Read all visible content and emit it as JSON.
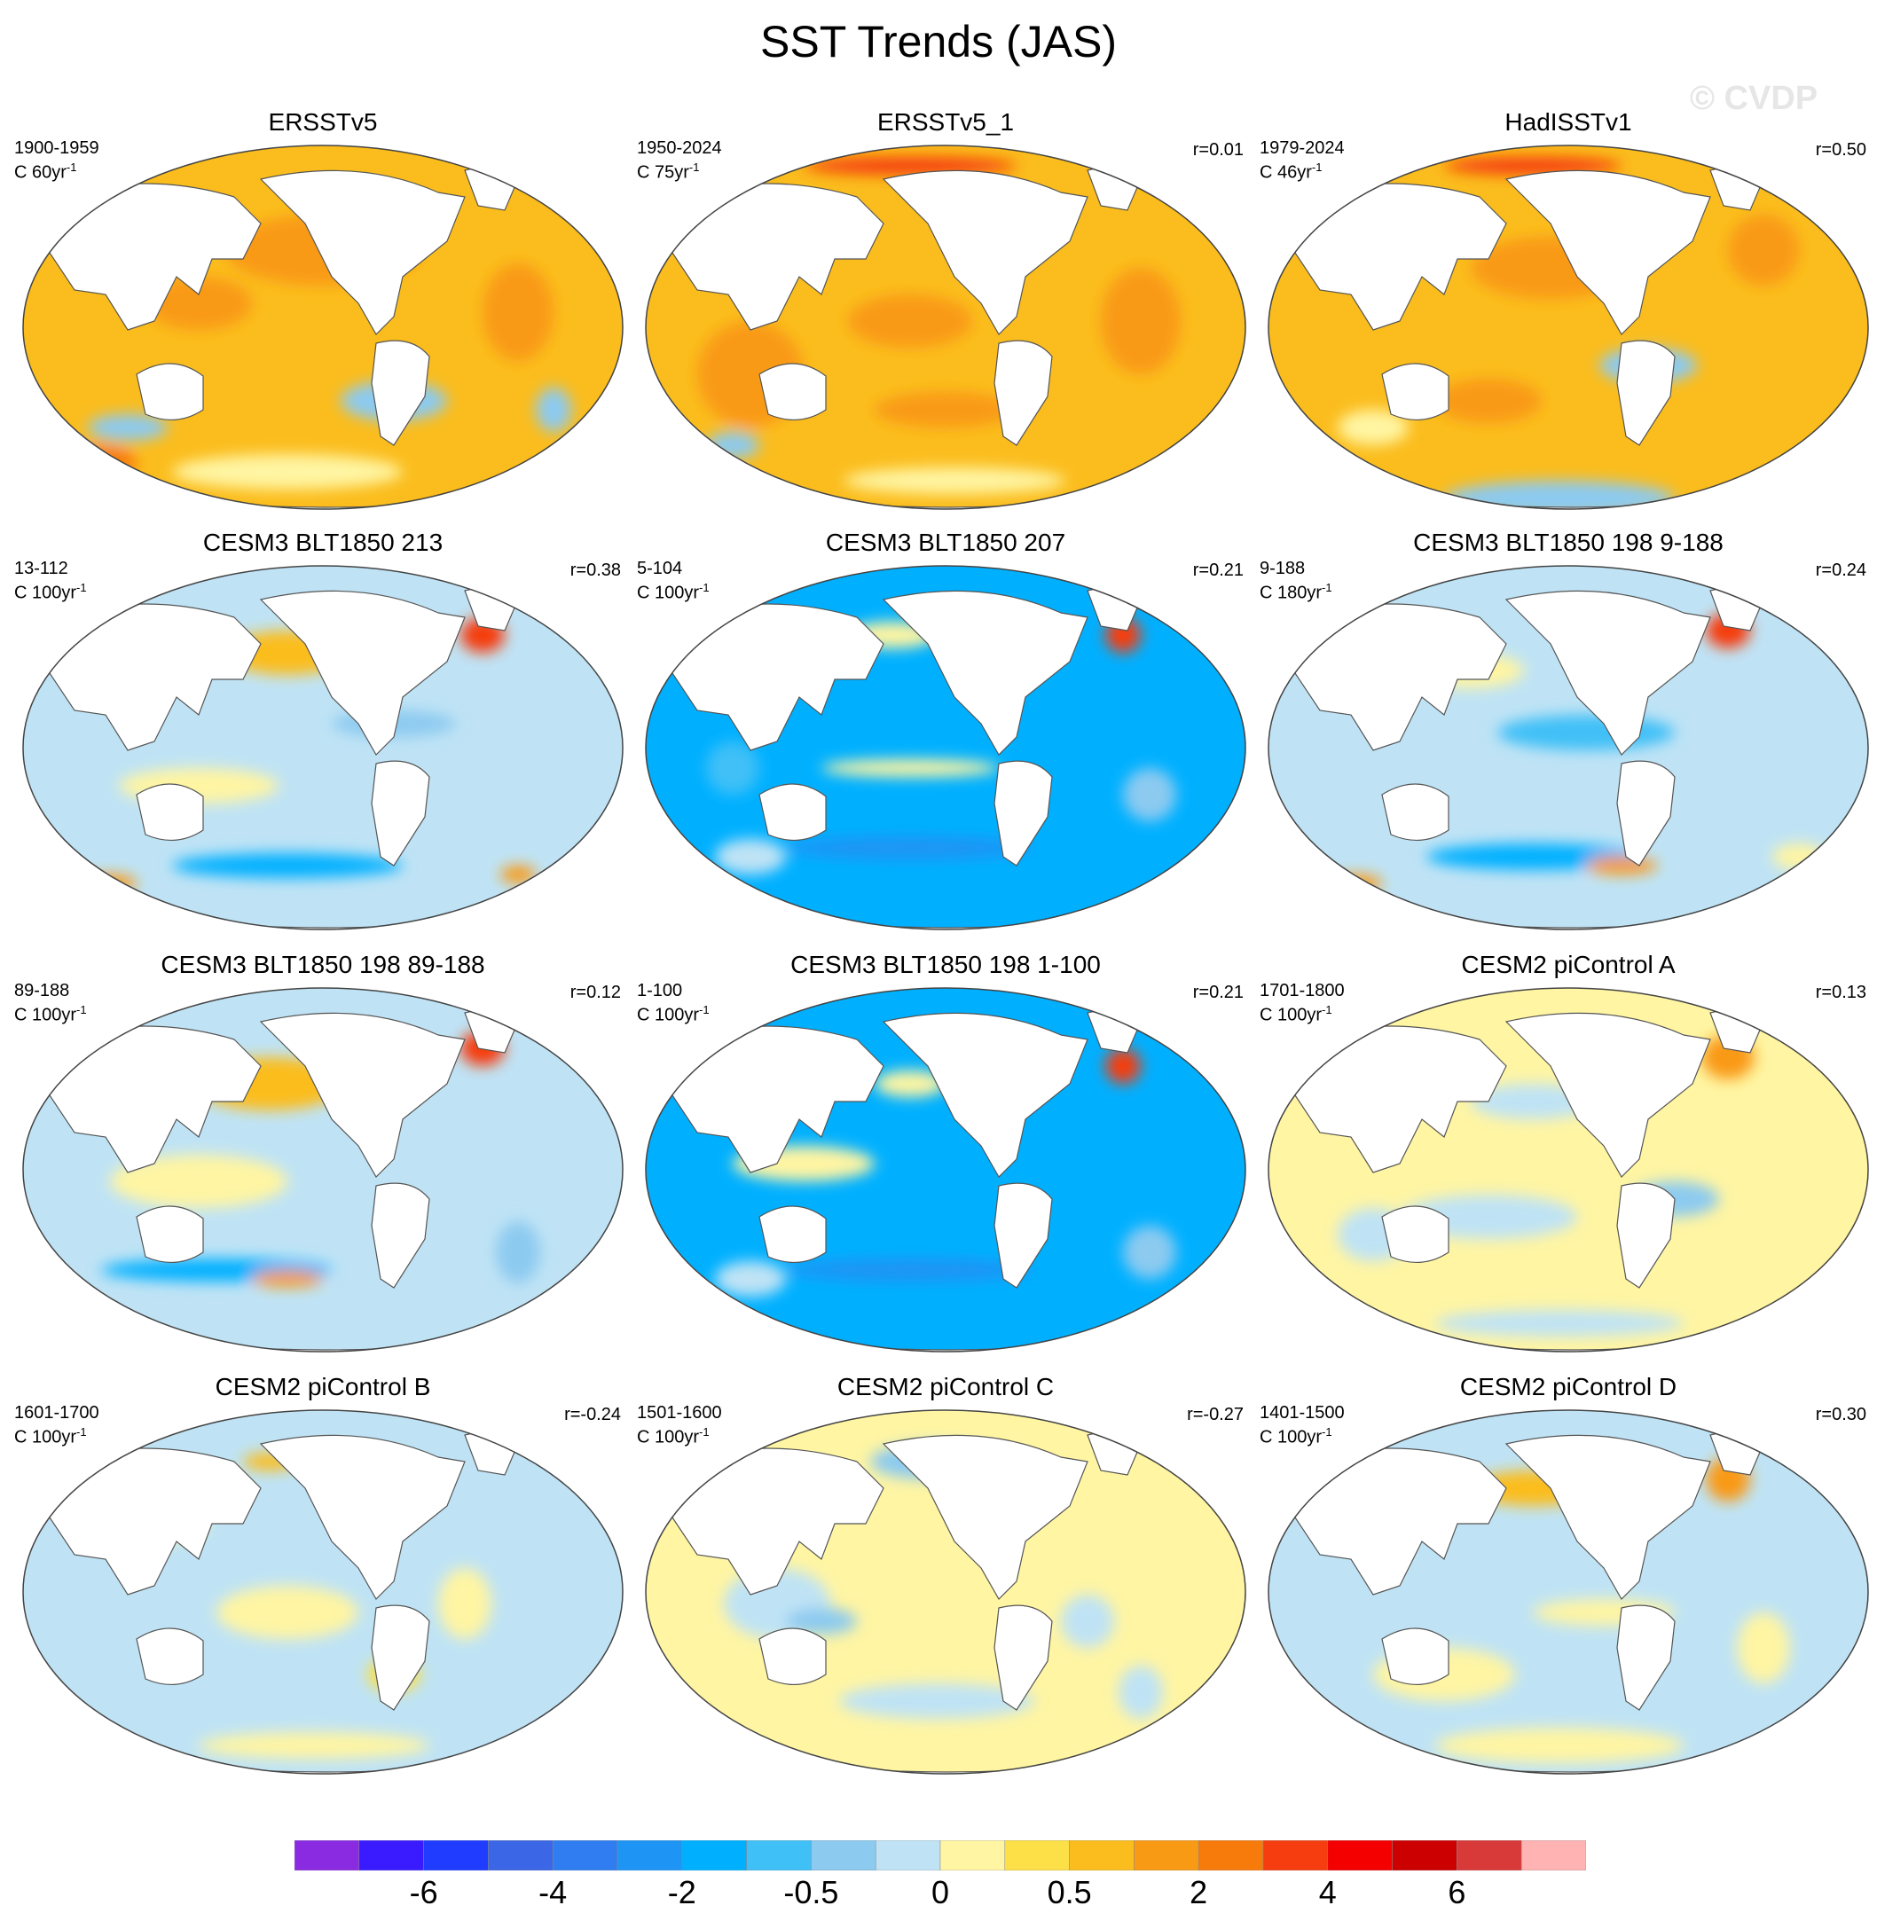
{
  "title": "SST Trends (JAS)",
  "watermark": "© CVDP",
  "panels": [
    {
      "title": "ERSSTv5",
      "period": "1900-1959",
      "units": "C 60yr",
      "units_sup": "-1",
      "r": "",
      "pattern": "warm-a"
    },
    {
      "title": "ERSSTv5_1",
      "period": "1950-2024",
      "units": "C 75yr",
      "units_sup": "-1",
      "r": "r=0.01",
      "pattern": "warm-b"
    },
    {
      "title": "HadISSTv1",
      "period": "1979-2024",
      "units": "C 46yr",
      "units_sup": "-1",
      "r": "r=0.50",
      "pattern": "warm-c"
    },
    {
      "title": "CESM3 BLT1850 213",
      "period": "13-112",
      "units": "C 100yr",
      "units_sup": "-1",
      "r": "r=0.38",
      "pattern": "mixed-a"
    },
    {
      "title": "CESM3 BLT1850 207",
      "period": "5-104",
      "units": "C 100yr",
      "units_sup": "-1",
      "r": "r=0.21",
      "pattern": "cool-a"
    },
    {
      "title": "CESM3 BLT1850 198 9-188",
      "period": "9-188",
      "units": "C 180yr",
      "units_sup": "-1",
      "r": "r=0.24",
      "pattern": "mixed-b"
    },
    {
      "title": "CESM3 BLT1850 198 89-188",
      "period": "89-188",
      "units": "C 100yr",
      "units_sup": "-1",
      "r": "r=0.12",
      "pattern": "mixed-c"
    },
    {
      "title": "CESM3 BLT1850 198 1-100",
      "period": "1-100",
      "units": "C 100yr",
      "units_sup": "-1",
      "r": "r=0.21",
      "pattern": "cool-b"
    },
    {
      "title": "CESM2 piControl A",
      "period": "1701-1800",
      "units": "C 100yr",
      "units_sup": "-1",
      "r": "r=0.13",
      "pattern": "pale-a"
    },
    {
      "title": "CESM2 piControl B",
      "period": "1601-1700",
      "units": "C 100yr",
      "units_sup": "-1",
      "r": "r=-0.24",
      "pattern": "pale-b"
    },
    {
      "title": "CESM2 piControl C",
      "period": "1501-1600",
      "units": "C 100yr",
      "units_sup": "-1",
      "r": "r=-0.27",
      "pattern": "pale-c"
    },
    {
      "title": "CESM2 piControl D",
      "period": "1401-1500",
      "units": "C 100yr",
      "units_sup": "-1",
      "r": "r=0.30",
      "pattern": "pale-d"
    }
  ],
  "colorbar": {
    "colors": [
      "#8a2be2",
      "#3a1aff",
      "#1f3cff",
      "#3b66e6",
      "#2f7df0",
      "#1e95f5",
      "#00b0ff",
      "#3fc0f7",
      "#8ccaf0",
      "#bfe3f5",
      "#fff5a3",
      "#fde047",
      "#fbbd1d",
      "#f99a15",
      "#f77b0b",
      "#f53d10",
      "#f40000",
      "#cc0000",
      "#d83a3a",
      "#ffb3b3"
    ],
    "labels": [
      "-6",
      "-4",
      "-2",
      "-0.5",
      "0",
      "0.5",
      "2",
      "4",
      "6"
    ]
  }
}
